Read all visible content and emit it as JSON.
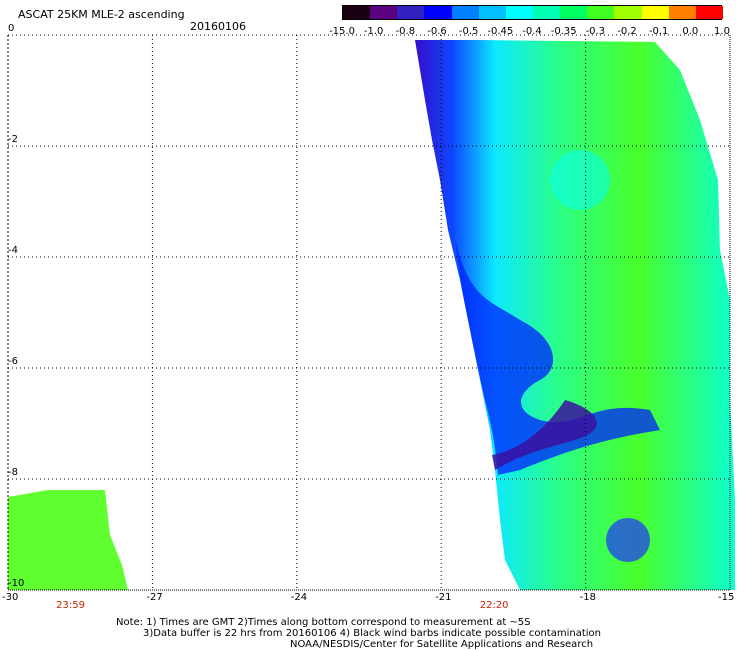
{
  "header": {
    "title": "ASCAT 25KM MLE-2 ascending",
    "date": "20160106"
  },
  "colorbar": {
    "labels": [
      "-15.0",
      "-1.0",
      "-0.8",
      "-0.6",
      "-0.5",
      "-0.45",
      "-0.4",
      "-0.35",
      "-0.3",
      "-0.2",
      "-0.1",
      "0.0",
      "1.0"
    ],
    "colors": [
      "#1a0010",
      "#5a0080",
      "#3020c0",
      "#0000ff",
      "#0080ff",
      "#00c0ff",
      "#00ffff",
      "#00ffb0",
      "#00ff60",
      "#40ff20",
      "#a0ff00",
      "#ffff00",
      "#ff8000",
      "#ff0000"
    ]
  },
  "axes": {
    "x_ticks": [
      "-30",
      "-27",
      "-24",
      "-21",
      "-18",
      "-15"
    ],
    "y_ticks": [
      "0",
      "-2",
      "-4",
      "-6",
      "-8",
      "-10"
    ],
    "xlim": [
      -30,
      -15
    ],
    "ylim": [
      -10,
      0
    ]
  },
  "time_labels": [
    {
      "text": "23:59",
      "lon": -28.7
    },
    {
      "text": "22:20",
      "lon": -19.9
    }
  ],
  "notes": {
    "line1": "Note: 1) Times are GMT 2)Times along bottom correspond to measurement at ~5S",
    "line2": "3)Data buffer is 22 hrs from 20160106 4) Black wind barbs indicate possible contamination",
    "line3": "NOAA/NESDIS/Center for Satellite Applications and Research"
  }
}
